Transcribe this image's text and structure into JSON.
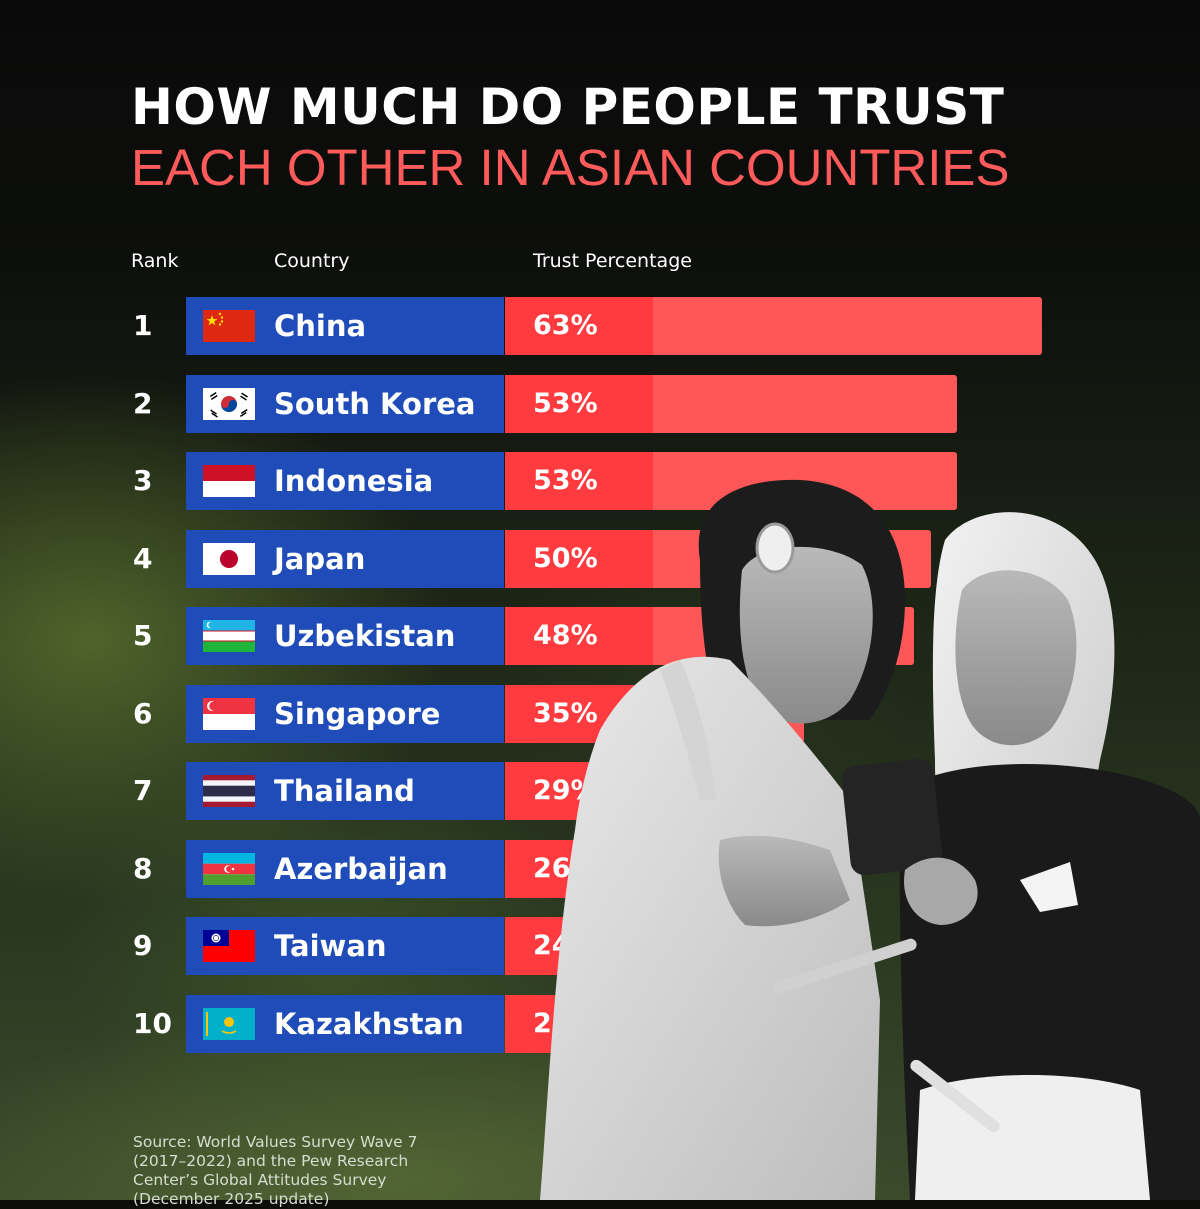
{
  "title": {
    "line1": "HOW MUCH DO PEOPLE TRUST",
    "line2": "EACH OTHER IN ASIAN COUNTRIES"
  },
  "columns": {
    "rank": "Rank",
    "country": "Country",
    "trust": "Trust Percentage"
  },
  "colors": {
    "country_cell": "#1f4cb8",
    "bar": "#ff5758",
    "bar_label_cell": "#ff3b3f",
    "title_accent": "#ff5b5b"
  },
  "chart_data": {
    "type": "bar",
    "orientation": "horizontal",
    "categories": [
      "China",
      "South Korea",
      "Indonesia",
      "Japan",
      "Uzbekistan",
      "Singapore",
      "Thailand",
      "Azerbaijan",
      "Taiwan",
      "Kazakhstan"
    ],
    "values": [
      63,
      53,
      53,
      50,
      48,
      35,
      29,
      26,
      24,
      23
    ],
    "rows": [
      {
        "rank": "1",
        "country": "China",
        "value": 63,
        "label": "63%",
        "flag": "flag-china"
      },
      {
        "rank": "2",
        "country": "South Korea",
        "value": 53,
        "label": "53%",
        "flag": "flag-south-korea"
      },
      {
        "rank": "3",
        "country": "Indonesia",
        "value": 53,
        "label": "53%",
        "flag": "flag-indonesia"
      },
      {
        "rank": "4",
        "country": "Japan",
        "value": 50,
        "label": "50%",
        "flag": "flag-japan"
      },
      {
        "rank": "5",
        "country": "Uzbekistan",
        "value": 48,
        "label": "48%",
        "flag": "flag-uzbekistan"
      },
      {
        "rank": "6",
        "country": "Singapore",
        "value": 35,
        "label": "35%",
        "flag": "flag-singapore"
      },
      {
        "rank": "7",
        "country": "Thailand",
        "value": 29,
        "label": "29%",
        "flag": "flag-thailand"
      },
      {
        "rank": "8",
        "country": "Azerbaijan",
        "value": 26,
        "label": "26%",
        "flag": "flag-azerbaijan"
      },
      {
        "rank": "9",
        "country": "Taiwan",
        "value": 24,
        "label": "24%",
        "flag": "flag-taiwan"
      },
      {
        "rank": "10",
        "country": "Kazakhstan",
        "value": 23,
        "label": "23%",
        "flag": "flag-kazakhstan"
      }
    ]
  },
  "source": "Source: World Values Survey Wave 7 (2017–2022) and the Pew Research Center’s Global Attitudes Survey (December 2025 update)"
}
